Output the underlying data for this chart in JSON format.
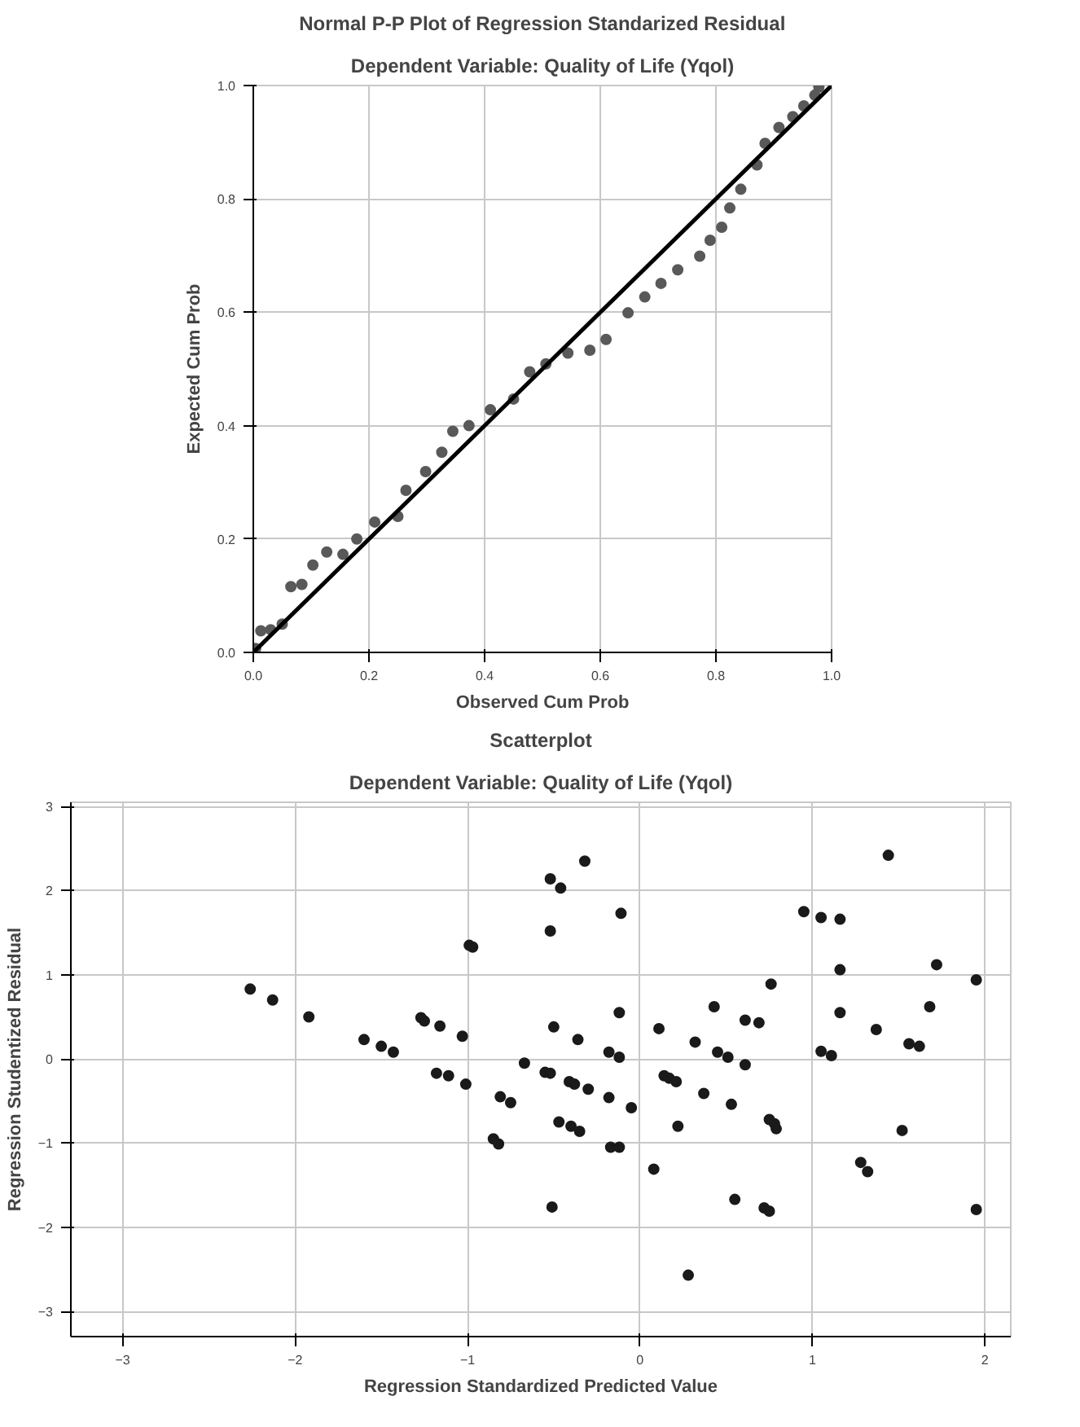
{
  "chart_data": [
    {
      "type": "scatter",
      "title": "Normal P-P Plot of Regression Standarized Residual",
      "subtitle": "Dependent Variable: Quality of Life (Yqol)",
      "xlabel": "Observed Cum Prob",
      "ylabel": "Expected Cum Prob",
      "xlim": [
        0,
        1
      ],
      "ylim": [
        0,
        1
      ],
      "xticks": [
        {
          "value": 0,
          "label": "0.0"
        },
        0.2,
        0.4,
        0.6,
        0.8,
        {
          "value": 1,
          "label": "1.0"
        }
      ],
      "yticks": [
        {
          "value": 0,
          "label": "0.0"
        },
        0.2,
        0.4,
        0.6,
        0.8,
        {
          "value": 1,
          "label": "1.0"
        }
      ],
      "grid": true,
      "series": [
        {
          "marker": "circle",
          "color": "#595959",
          "x": [
            0.004,
            0.013,
            0.03,
            0.05,
            0.065,
            0.084,
            0.103,
            0.127,
            0.155,
            0.179,
            0.21,
            0.25,
            0.264,
            0.298,
            0.326,
            0.345,
            0.373,
            0.41,
            0.45,
            0.478,
            0.506,
            0.544,
            0.582,
            0.61,
            0.648,
            0.677,
            0.705,
            0.734,
            0.772,
            0.79,
            0.81,
            0.824,
            0.843,
            0.871,
            0.885,
            0.909,
            0.933,
            0.952,
            0.971,
            0.978
          ],
          "values": [
            0.007,
            0.038,
            0.04,
            0.05,
            0.116,
            0.12,
            0.154,
            0.177,
            0.173,
            0.2,
            0.23,
            0.24,
            0.286,
            0.319,
            0.353,
            0.39,
            0.4,
            0.428,
            0.447,
            0.495,
            0.509,
            0.528,
            0.533,
            0.552,
            0.599,
            0.627,
            0.651,
            0.675,
            0.699,
            0.727,
            0.75,
            0.784,
            0.817,
            0.86,
            0.898,
            0.926,
            0.945,
            0.964,
            0.983,
            0.997
          ]
        },
        {
          "type": "line",
          "marker": "none",
          "color": "#000000",
          "x": [
            0,
            1
          ],
          "values": [
            0,
            1
          ]
        }
      ]
    },
    {
      "type": "scatter",
      "title": "Scatterplot",
      "subtitle": "Dependent Variable: Quality of Life (Yqol)",
      "xlabel": "Regression Standardized Predicted Value",
      "ylabel": "Regression Studentized Residual",
      "xlim": [
        -3.3,
        2.15
      ],
      "ylim": [
        -3.3,
        3.05
      ],
      "xticks": [
        -3,
        -2,
        -1,
        0,
        1,
        2
      ],
      "yticks": [
        -3,
        -2,
        -1,
        0,
        1,
        2,
        3
      ],
      "grid": true,
      "series": [
        {
          "marker": "circle",
          "color": "#1a1a1a",
          "x": [
            -2.26,
            -2.13,
            -1.92,
            -1.6,
            -1.5,
            -1.43,
            -1.27,
            -1.25,
            -1.16,
            -1.03,
            -1.18,
            -1.11,
            -1.01,
            -0.99,
            -0.97,
            -0.81,
            -0.75,
            -0.85,
            -0.82,
            -0.67,
            -0.52,
            -0.46,
            -0.32,
            -0.52,
            -0.11,
            -0.5,
            -0.36,
            -0.12,
            -0.18,
            -0.12,
            -0.55,
            -0.52,
            -0.41,
            -0.38,
            -0.3,
            -0.18,
            -0.05,
            -0.47,
            -0.4,
            -0.35,
            -0.17,
            -0.12,
            -0.51,
            0.11,
            0.08,
            0.14,
            0.17,
            0.21,
            0.22,
            0.28,
            0.32,
            0.37,
            0.43,
            0.45,
            0.51,
            0.53,
            0.55,
            0.61,
            0.61,
            0.69,
            0.76,
            0.75,
            0.78,
            0.79,
            0.72,
            0.75,
            0.95,
            1.05,
            1.16,
            1.16,
            1.16,
            1.05,
            1.11,
            1.44,
            1.37,
            1.56,
            1.62,
            1.52,
            1.28,
            1.32,
            1.72,
            1.68,
            1.95,
            1.95
          ],
          "values": [
            0.83,
            0.7,
            0.5,
            0.23,
            0.15,
            0.08,
            0.49,
            0.45,
            0.39,
            0.27,
            -0.17,
            -0.2,
            -0.3,
            1.35,
            1.33,
            -0.45,
            -0.52,
            -0.95,
            -1.01,
            -0.05,
            2.14,
            2.03,
            2.35,
            1.52,
            1.73,
            0.38,
            0.23,
            0.55,
            0.08,
            0.02,
            -0.16,
            -0.17,
            -0.27,
            -0.3,
            -0.36,
            -0.46,
            -0.58,
            -0.75,
            -0.8,
            -0.86,
            -1.05,
            -1.05,
            -1.76,
            0.36,
            -1.31,
            -0.2,
            -0.23,
            -0.27,
            -0.8,
            -2.57,
            0.2,
            -0.41,
            0.62,
            0.08,
            0.02,
            -0.54,
            -1.67,
            0.46,
            -0.07,
            0.43,
            0.89,
            -0.72,
            -0.77,
            -0.83,
            -1.77,
            -1.81,
            1.75,
            1.68,
            1.66,
            1.06,
            0.55,
            0.09,
            0.04,
            2.42,
            0.35,
            0.18,
            0.15,
            -0.85,
            -1.23,
            -1.34,
            1.12,
            0.62,
            0.94,
            -1.79
          ]
        }
      ]
    }
  ]
}
